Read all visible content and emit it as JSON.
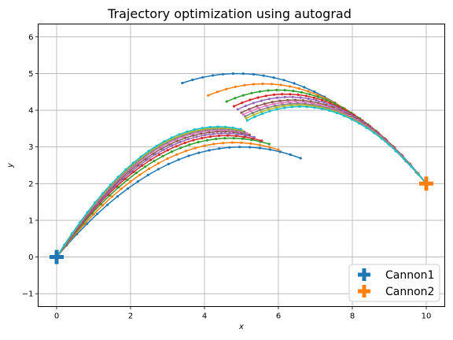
{
  "chart_data": {
    "type": "line",
    "title": "Trajectory optimization using autograd",
    "xlabel": "x",
    "ylabel": "y",
    "xlim": [
      -0.5,
      10.5
    ],
    "ylim": [
      -1.35,
      6.35
    ],
    "xticks": [
      0,
      2,
      4,
      6,
      8,
      10
    ],
    "yticks": [
      -1,
      0,
      1,
      2,
      3,
      4,
      5,
      6
    ],
    "grid": true,
    "legend_position": "lower-right",
    "colors": {
      "palette": [
        "#1f77b4",
        "#ff7f0e",
        "#2ca02c",
        "#d62728",
        "#9467bd",
        "#8c564b",
        "#e377c2",
        "#7f7f7f",
        "#bcbd22",
        "#17becf"
      ],
      "cannon1": "#1f77b4",
      "cannon2": "#ff7f0e"
    },
    "cannons": [
      {
        "name": "Cannon1",
        "x": 0,
        "y": 0
      },
      {
        "name": "Cannon2",
        "x": 10,
        "y": 2
      }
    ],
    "trajectory_families": {
      "from_cannon1": {
        "start": [
          0,
          0
        ],
        "peaks_x": [
          5.0,
          4.8,
          4.7,
          4.6,
          4.55,
          4.5,
          4.45,
          4.42,
          4.4,
          4.38
        ],
        "peaks_y": [
          3.0,
          3.12,
          3.24,
          3.31,
          3.37,
          3.42,
          3.46,
          3.49,
          3.52,
          3.55
        ],
        "ends_x": [
          6.6,
          6.0,
          5.75,
          5.55,
          5.35,
          5.22,
          5.15,
          5.08,
          5.02,
          4.98
        ],
        "ends_y": [
          2.3,
          2.45,
          2.57,
          2.65,
          2.82,
          2.92,
          3.0,
          3.05,
          3.1,
          3.12
        ]
      },
      "from_cannon2": {
        "start": [
          10,
          2
        ],
        "peaks_x": [
          4.9,
          5.6,
          6.0,
          6.2,
          6.3,
          6.4,
          6.45,
          6.5,
          6.55,
          6.6
        ],
        "peaks_y": [
          5.0,
          4.72,
          4.55,
          4.44,
          4.36,
          4.28,
          4.23,
          4.18,
          4.14,
          4.1
        ],
        "ends_x": [
          3.4,
          4.1,
          4.6,
          4.8,
          4.9,
          5.0,
          5.05,
          5.1,
          5.13,
          5.16
        ],
        "ends_y": [
          4.3,
          3.95,
          3.65,
          3.6,
          3.45,
          3.35,
          3.3,
          3.25,
          3.2,
          3.15
        ]
      }
    }
  }
}
